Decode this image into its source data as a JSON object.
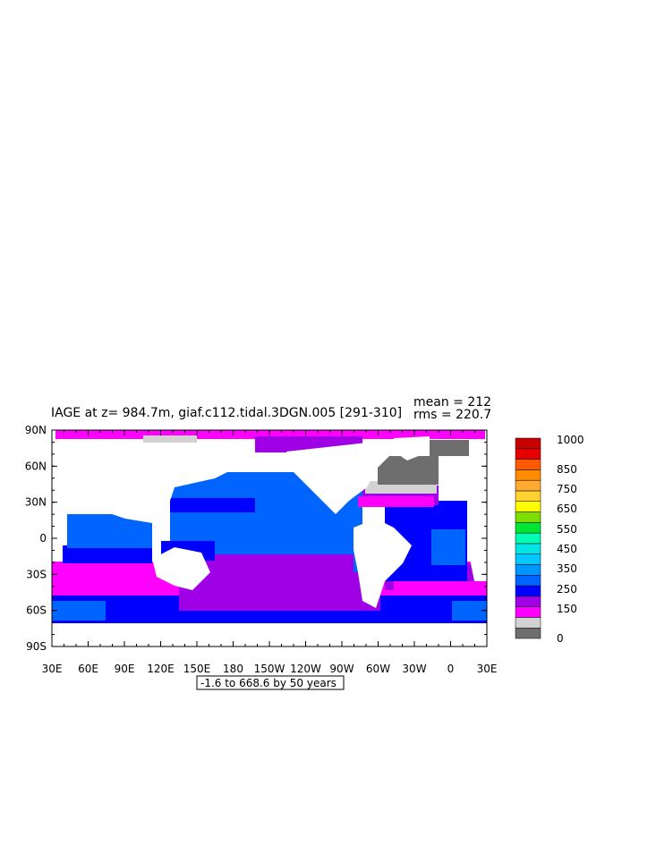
{
  "chart_data": {
    "type": "heatmap",
    "title": "IAGE at z= 984.7m, giaf.c112.tidal.3DGN.005 [291-310]",
    "stats": {
      "mean_text": "mean = 212",
      "rms_text": "rms = 220.7"
    },
    "range_note": "-1.6 to 668.6 by 50 years",
    "xaxis": {
      "ticks": [
        "30E",
        "60E",
        "90E",
        "120E",
        "150E",
        "180",
        "150W",
        "120W",
        "90W",
        "60W",
        "30W",
        "0",
        "30E"
      ]
    },
    "yaxis": {
      "ticks": [
        "90N",
        "60N",
        "30N",
        "0",
        "30S",
        "60S",
        "90S"
      ]
    },
    "colorbar": {
      "colors": [
        "#6e6e6e",
        "#d2d2d2",
        "#ff00ff",
        "#a000e6",
        "#0000ff",
        "#0064ff",
        "#0096ff",
        "#00c8ff",
        "#00e6e6",
        "#00ffb4",
        "#00e632",
        "#7ddc00",
        "#ffff00",
        "#ffd232",
        "#ffaa32",
        "#ff8c00",
        "#ff5a00",
        "#e60000",
        "#c80000"
      ],
      "labels": [
        "0",
        "150",
        "250",
        "350",
        "450",
        "550",
        "650",
        "750",
        "850",
        "1000"
      ]
    }
  }
}
